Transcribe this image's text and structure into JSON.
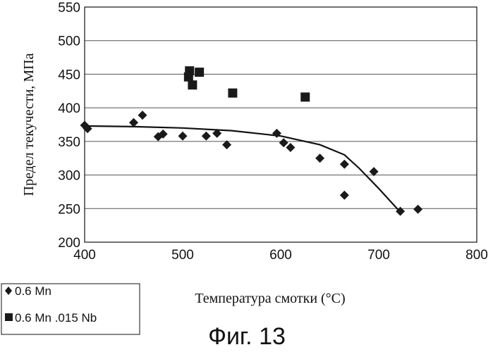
{
  "chart_data": {
    "type": "scatter",
    "xlabel": "Температура смотки (°C)",
    "ylabel": "Предел текучести, МПа",
    "xlim": [
      400,
      800
    ],
    "ylim": [
      200,
      550
    ],
    "x_ticks": [
      "400",
      "500",
      "600",
      "700",
      "800"
    ],
    "y_ticks": [
      "200",
      "250",
      "300",
      "350",
      "400",
      "450",
      "500",
      "550"
    ],
    "grid": "horizontal",
    "legend_position": "bottom-left, outside plot",
    "caption": "Фиг. 13",
    "series": [
      {
        "name": "0.6 Mn",
        "marker": "diamond",
        "color": "#1a1a1a",
        "points": [
          [
            400,
            374
          ],
          [
            403,
            369
          ],
          [
            450,
            378
          ],
          [
            459,
            389
          ],
          [
            475,
            357
          ],
          [
            480,
            361
          ],
          [
            500,
            358
          ],
          [
            524,
            358
          ],
          [
            535,
            362
          ],
          [
            545,
            345
          ],
          [
            596,
            362
          ],
          [
            603,
            348
          ],
          [
            610,
            341
          ],
          [
            640,
            325
          ],
          [
            665,
            316
          ],
          [
            665,
            270
          ],
          [
            695,
            305
          ],
          [
            722,
            246
          ],
          [
            740,
            249
          ]
        ]
      },
      {
        "name": "0.6 Mn .015 Nb",
        "marker": "square",
        "color": "#1a1a1a",
        "points": [
          [
            506,
            446
          ],
          [
            507,
            455
          ],
          [
            510,
            434
          ],
          [
            517,
            453
          ],
          [
            551,
            422
          ],
          [
            625,
            416
          ]
        ]
      }
    ],
    "trend_line": [
      [
        400,
        373
      ],
      [
        450,
        372
      ],
      [
        500,
        370
      ],
      [
        550,
        366
      ],
      [
        600,
        358
      ],
      [
        640,
        345
      ],
      [
        665,
        330
      ],
      [
        680,
        310
      ],
      [
        700,
        280
      ],
      [
        720,
        248
      ]
    ]
  }
}
